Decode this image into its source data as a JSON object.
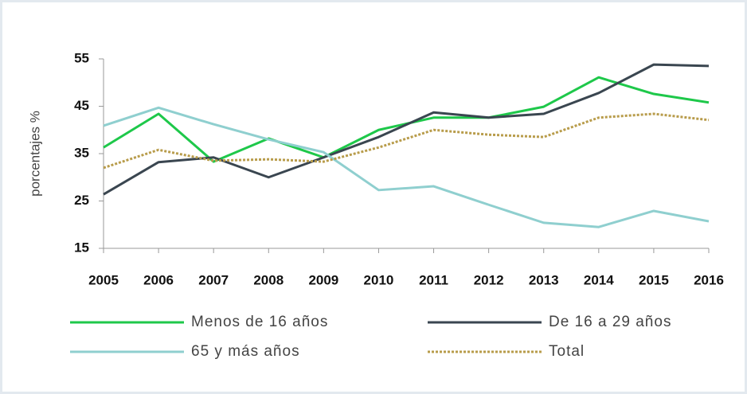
{
  "chart_data": {
    "type": "line",
    "y_label": "porcentajes %",
    "categories": [
      "2005",
      "2006",
      "2007",
      "2008",
      "2009",
      "2010",
      "2011",
      "2012",
      "2013",
      "2014",
      "2015",
      "2016"
    ],
    "series": [
      {
        "name": "Menos de 16 años",
        "color": "#1ec84a",
        "dash": false,
        "values": [
          36.3,
          43.4,
          33.3,
          38.2,
          34.2,
          40.0,
          42.6,
          42.6,
          44.9,
          51.1,
          47.6,
          45.8
        ]
      },
      {
        "name": "De 16 a 29 años",
        "color": "#3a4650",
        "dash": false,
        "values": [
          26.4,
          33.2,
          34.2,
          30.0,
          34.2,
          38.5,
          43.7,
          42.6,
          43.4,
          47.8,
          53.8,
          53.5
        ]
      },
      {
        "name": "65 y más años",
        "color": "#8fcfcf",
        "dash": false,
        "values": [
          40.9,
          44.7,
          41.2,
          38.0,
          35.3,
          27.3,
          28.1,
          24.2,
          20.4,
          19.5,
          22.9,
          20.7
        ]
      },
      {
        "name": "Total",
        "color": "#b89c4b",
        "dash": true,
        "values": [
          32.0,
          35.8,
          33.5,
          33.8,
          33.3,
          36.3,
          40.0,
          39.0,
          38.5,
          42.6,
          43.4,
          42.1
        ]
      }
    ],
    "ylim": [
      15,
      55
    ],
    "yticks": [
      15,
      25,
      35,
      45,
      55
    ],
    "grid": false
  }
}
